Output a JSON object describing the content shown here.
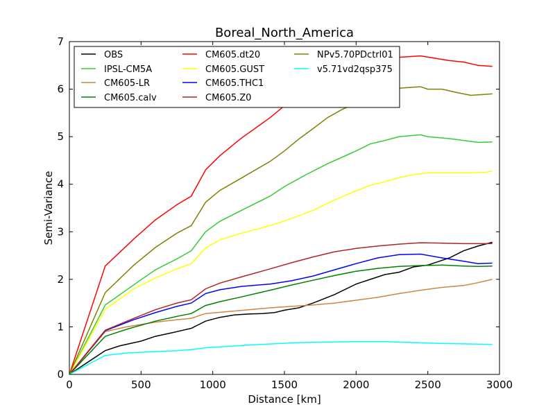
{
  "chart_data": {
    "type": "line",
    "title": "Boreal_North_America",
    "xlabel": "Distance [km]",
    "ylabel": "Semi-Variance",
    "xlim": [
      0,
      3000
    ],
    "ylim": [
      0,
      7
    ],
    "xticks": [
      0,
      500,
      1000,
      1500,
      2000,
      2500,
      3000
    ],
    "yticks": [
      0,
      1,
      2,
      3,
      4,
      5,
      6,
      7
    ],
    "grid": false,
    "legend_position": "upper-left",
    "legend_columns": 3,
    "series": [
      {
        "name": "OBS",
        "color": "#000000",
        "x": [
          0,
          250,
          350,
          500,
          600,
          750,
          850,
          950,
          1050,
          1150,
          1250,
          1350,
          1430,
          1500,
          1600,
          1700,
          1850,
          2000,
          2120,
          2200,
          2300,
          2400,
          2500,
          2650,
          2750,
          2850,
          2950
        ],
        "y": [
          0,
          0.5,
          0.6,
          0.7,
          0.8,
          0.9,
          0.97,
          1.12,
          1.2,
          1.25,
          1.27,
          1.28,
          1.3,
          1.35,
          1.4,
          1.5,
          1.68,
          1.9,
          2.02,
          2.1,
          2.15,
          2.26,
          2.3,
          2.45,
          2.6,
          2.7,
          2.78
        ]
      },
      {
        "name": "IPSL-CM5A",
        "color": "#33cc33",
        "x": [
          0,
          250,
          480,
          600,
          750,
          850,
          950,
          1050,
          1200,
          1400,
          1500,
          1650,
          1800,
          2000,
          2100,
          2200,
          2300,
          2450,
          2500,
          2650,
          2750,
          2850,
          2950
        ],
        "y": [
          0,
          1.46,
          1.95,
          2.2,
          2.43,
          2.6,
          3.0,
          3.22,
          3.45,
          3.75,
          3.95,
          4.2,
          4.43,
          4.7,
          4.85,
          4.92,
          5.0,
          5.04,
          5.0,
          4.96,
          4.92,
          4.88,
          4.89
        ]
      },
      {
        "name": "CM605-LR",
        "color": "#cd853f",
        "x": [
          0,
          250,
          400,
          600,
          750,
          850,
          950,
          1100,
          1250,
          1400,
          1550,
          1700,
          1850,
          2000,
          2150,
          2300,
          2450,
          2600,
          2750,
          2850,
          2950
        ],
        "y": [
          0,
          0.9,
          1.0,
          1.1,
          1.15,
          1.18,
          1.28,
          1.32,
          1.36,
          1.4,
          1.43,
          1.46,
          1.5,
          1.56,
          1.62,
          1.7,
          1.77,
          1.83,
          1.87,
          1.93,
          2.0
        ]
      },
      {
        "name": "CM605.calv",
        "color": "#008000",
        "x": [
          0,
          250,
          400,
          600,
          750,
          850,
          950,
          1050,
          1200,
          1400,
          1550,
          1700,
          1850,
          2000,
          2150,
          2300,
          2450,
          2600,
          2750,
          2850,
          2950
        ],
        "y": [
          0,
          0.8,
          0.95,
          1.12,
          1.22,
          1.28,
          1.45,
          1.53,
          1.63,
          1.77,
          1.88,
          1.98,
          2.08,
          2.17,
          2.23,
          2.27,
          2.29,
          2.3,
          2.28,
          2.27,
          2.28
        ]
      },
      {
        "name": "CM605.dt20",
        "color": "#ff0000",
        "x": [
          0,
          250,
          450,
          600,
          750,
          850,
          950,
          1050,
          1200,
          1400,
          1500,
          1550,
          1600
        ],
        "y": [
          0,
          2.28,
          2.85,
          3.25,
          3.57,
          3.75,
          4.3,
          4.6,
          4.97,
          5.4,
          5.65,
          5.75,
          5.8
        ]
      },
      {
        "name": "CM605.GUST",
        "color": "#ffff00",
        "x": [
          0,
          250,
          450,
          600,
          750,
          850,
          950,
          1050,
          1200,
          1400,
          1550,
          1700,
          1850,
          2000,
          2100,
          2200,
          2300,
          2400,
          2500,
          2600,
          2700,
          2800,
          2900,
          2950
        ],
        "y": [
          0,
          1.37,
          1.8,
          2.03,
          2.22,
          2.33,
          2.66,
          2.83,
          2.97,
          3.13,
          3.28,
          3.45,
          3.67,
          3.86,
          3.98,
          4.05,
          4.14,
          4.2,
          4.24,
          4.24,
          4.24,
          4.24,
          4.25,
          4.28
        ]
      },
      {
        "name": "CM605.THC1",
        "color": "#0000ff",
        "x": [
          0,
          250,
          450,
          600,
          750,
          850,
          950,
          1050,
          1200,
          1400,
          1550,
          1700,
          1850,
          2000,
          2150,
          2300,
          2450,
          2600,
          2750,
          2850,
          2950
        ],
        "y": [
          0,
          0.92,
          1.15,
          1.3,
          1.43,
          1.5,
          1.7,
          1.78,
          1.85,
          1.9,
          1.97,
          2.07,
          2.2,
          2.33,
          2.45,
          2.52,
          2.53,
          2.45,
          2.38,
          2.33,
          2.34
        ]
      },
      {
        "name": "CM605.Z0",
        "color": "#b22222",
        "x": [
          0,
          250,
          450,
          600,
          750,
          850,
          950,
          1050,
          1200,
          1400,
          1550,
          1700,
          1850,
          2000,
          2150,
          2300,
          2450,
          2600,
          2750,
          2850,
          2950
        ],
        "y": [
          0,
          0.93,
          1.18,
          1.36,
          1.5,
          1.57,
          1.8,
          1.92,
          2.05,
          2.22,
          2.35,
          2.47,
          2.58,
          2.65,
          2.7,
          2.74,
          2.77,
          2.76,
          2.75,
          2.75,
          2.75
        ]
      },
      {
        "name": "NPv5.70PDctrl01",
        "color": "#808000",
        "x": [
          0,
          250,
          450,
          600,
          750,
          850,
          950,
          1050,
          1200,
          1400,
          1500,
          1600,
          1700,
          1800,
          1900,
          2000
        ],
        "y": [
          0,
          1.72,
          2.3,
          2.67,
          2.97,
          3.13,
          3.62,
          3.87,
          4.13,
          4.48,
          4.7,
          4.95,
          5.17,
          5.4,
          5.57,
          5.7
        ]
      },
      {
        "name": "v5.71vd2qsp375",
        "color": "#00ffff",
        "x": [
          0,
          250,
          400,
          600,
          750,
          850,
          950,
          1050,
          1200,
          1400,
          1600,
          1800,
          2000,
          2200,
          2400,
          2600,
          2800,
          2950
        ],
        "y": [
          0,
          0.4,
          0.45,
          0.48,
          0.5,
          0.52,
          0.56,
          0.58,
          0.61,
          0.64,
          0.67,
          0.68,
          0.69,
          0.69,
          0.67,
          0.65,
          0.64,
          0.63
        ]
      }
    ],
    "extra_segments": [
      {
        "series": "CM605.dt20",
        "x": [
          2150,
          2300,
          2450,
          2550,
          2650,
          2750,
          2850,
          2950
        ],
        "y": [
          6.68,
          6.67,
          6.7,
          6.65,
          6.6,
          6.57,
          6.5,
          6.48
        ]
      },
      {
        "series": "NPv5.70PDctrl01",
        "x": [
          2300,
          2400,
          2450,
          2500,
          2600,
          2700,
          2800,
          2950
        ],
        "y": [
          6.02,
          6.04,
          6.05,
          6.0,
          6.0,
          5.93,
          5.87,
          5.9
        ]
      }
    ]
  }
}
